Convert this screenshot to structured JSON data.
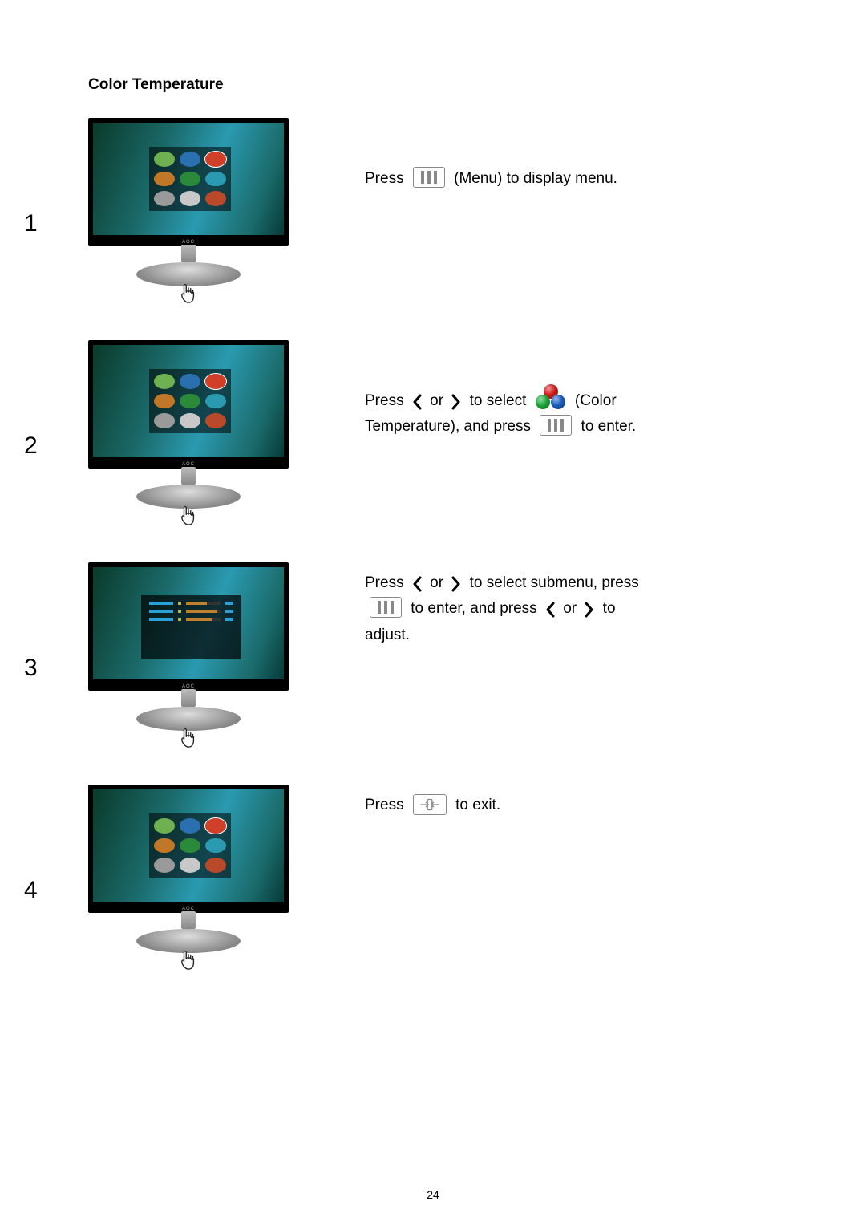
{
  "title": "Color Temperature",
  "page_number": "24",
  "colors": {
    "ball_red": "#d4201e",
    "ball_green": "#1fae3c",
    "ball_blue": "#1e62c4",
    "arrow": "#000000",
    "screen_gradient": [
      "#0a3a2a",
      "#1b6a6a",
      "#2a9ab0",
      "#1b6a6a",
      "#063a3a"
    ],
    "osd_icons": [
      "#6fb050",
      "#2a6fb0",
      "#d04028",
      "#c07828",
      "#2a8a3a",
      "#2a9ab0",
      "#9a9a9a",
      "#c8c8c8",
      "#b84a2a"
    ],
    "osd_highlight_index": 2
  },
  "steps": [
    {
      "num": "1",
      "thumbnail_variant": "grid",
      "text_parts": [
        {
          "t": "text",
          "v": "Press "
        },
        {
          "t": "menu-icon"
        },
        {
          "t": "text",
          "v": " (Menu) to display menu."
        }
      ],
      "text_top_pad": 60
    },
    {
      "num": "2",
      "thumbnail_variant": "grid",
      "text_parts": [
        {
          "t": "text",
          "v": "Press "
        },
        {
          "t": "arrow-left"
        },
        {
          "t": "text",
          "v": " or "
        },
        {
          "t": "arrow-right"
        },
        {
          "t": "text",
          "v": " to select "
        },
        {
          "t": "balls"
        },
        {
          "t": "text",
          "v": " (Color"
        },
        {
          "t": "br"
        },
        {
          "t": "text",
          "v": "Temperature), and press "
        },
        {
          "t": "menu-icon"
        },
        {
          "t": "text",
          "v": " to enter."
        }
      ],
      "text_top_pad": 55
    },
    {
      "num": "3",
      "thumbnail_variant": "submenu",
      "text_parts": [
        {
          "t": "text",
          "v": "Press "
        },
        {
          "t": "arrow-left"
        },
        {
          "t": "text",
          "v": " or "
        },
        {
          "t": "arrow-right"
        },
        {
          "t": "text",
          "v": " to select submenu, press"
        },
        {
          "t": "br"
        },
        {
          "t": "menu-icon"
        },
        {
          "t": "text",
          "v": " to enter, and press "
        },
        {
          "t": "arrow-left"
        },
        {
          "t": "text",
          "v": " or "
        },
        {
          "t": "arrow-right"
        },
        {
          "t": "text",
          "v": " to"
        },
        {
          "t": "br"
        },
        {
          "t": "text",
          "v": "adjust."
        }
      ],
      "text_top_pad": 10
    },
    {
      "num": "4",
      "thumbnail_variant": "grid",
      "text_parts": [
        {
          "t": "text",
          "v": "Press "
        },
        {
          "t": "auto-icon"
        },
        {
          "t": "text",
          "v": " to exit."
        }
      ],
      "text_top_pad": 10
    }
  ],
  "submenu_bars": [
    60,
    90,
    75
  ]
}
